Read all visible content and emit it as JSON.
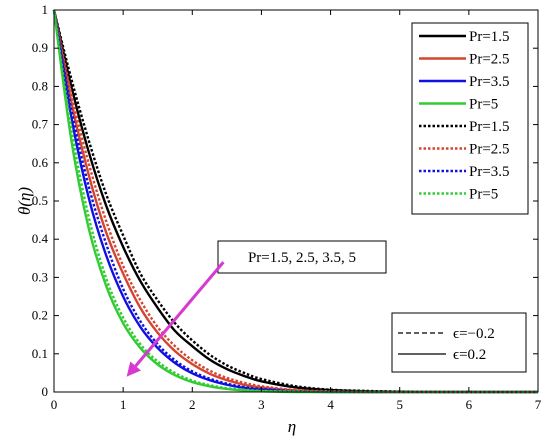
{
  "chart_data": {
    "type": "line",
    "xlabel": "η",
    "ylabel": "θ(η)",
    "xlim": [
      0,
      7
    ],
    "ylim": [
      0,
      1
    ],
    "xticks": [
      "0",
      "1",
      "2",
      "3",
      "4",
      "5",
      "6",
      "7"
    ],
    "yticks": [
      "0",
      "0.1",
      "0.2",
      "0.3",
      "0.4",
      "0.5",
      "0.6",
      "0.7",
      "0.8",
      "0.9",
      "1"
    ],
    "grid": false,
    "legend_position": "top-right",
    "colors": {
      "Pr=1.5": "#000000",
      "Pr=2.5": "#d4452f",
      "Pr=3.5": "#1010e0",
      "Pr=5": "#33cc33"
    },
    "x": [
      0,
      0.25,
      0.5,
      0.75,
      1.0,
      1.25,
      1.5,
      1.75,
      2.0,
      2.25,
      2.5,
      2.75,
      3.0,
      3.5,
      4.0,
      4.5,
      5.0,
      6.0,
      7.0
    ],
    "series": [
      {
        "name": "Pr=1.5",
        "style": "solid",
        "values": [
          1.0,
          0.8,
          0.63,
          0.49,
          0.38,
          0.29,
          0.22,
          0.16,
          0.12,
          0.085,
          0.06,
          0.042,
          0.028,
          0.012,
          0.005,
          0.002,
          0.001,
          0.0,
          0.0
        ]
      },
      {
        "name": "Pr=2.5",
        "style": "solid",
        "values": [
          1.0,
          0.76,
          0.57,
          0.42,
          0.31,
          0.22,
          0.155,
          0.107,
          0.073,
          0.048,
          0.031,
          0.019,
          0.012,
          0.004,
          0.001,
          0.0,
          0.0,
          0.0,
          0.0
        ]
      },
      {
        "name": "Pr=3.5",
        "style": "solid",
        "values": [
          1.0,
          0.72,
          0.51,
          0.36,
          0.25,
          0.17,
          0.115,
          0.076,
          0.049,
          0.031,
          0.019,
          0.011,
          0.006,
          0.002,
          0.0,
          0.0,
          0.0,
          0.0,
          0.0
        ]
      },
      {
        "name": "Pr=5",
        "style": "solid",
        "values": [
          1.0,
          0.66,
          0.43,
          0.28,
          0.18,
          0.115,
          0.072,
          0.044,
          0.026,
          0.015,
          0.008,
          0.004,
          0.002,
          0.0,
          0.0,
          0.0,
          0.0,
          0.0,
          0.0
        ]
      },
      {
        "name": "Pr=1.5",
        "style": "dotted",
        "values": [
          1.0,
          0.82,
          0.66,
          0.52,
          0.41,
          0.31,
          0.24,
          0.18,
          0.135,
          0.098,
          0.07,
          0.05,
          0.034,
          0.015,
          0.006,
          0.003,
          0.001,
          0.0,
          0.0
        ]
      },
      {
        "name": "Pr=2.5",
        "style": "dotted",
        "values": [
          1.0,
          0.78,
          0.6,
          0.45,
          0.33,
          0.24,
          0.17,
          0.12,
          0.083,
          0.056,
          0.037,
          0.024,
          0.015,
          0.005,
          0.002,
          0.0,
          0.0,
          0.0,
          0.0
        ]
      },
      {
        "name": "Pr=3.5",
        "style": "dotted",
        "values": [
          1.0,
          0.74,
          0.54,
          0.39,
          0.27,
          0.185,
          0.125,
          0.083,
          0.054,
          0.035,
          0.022,
          0.013,
          0.008,
          0.002,
          0.001,
          0.0,
          0.0,
          0.0,
          0.0
        ]
      },
      {
        "name": "Pr=5",
        "style": "dotted",
        "values": [
          1.0,
          0.69,
          0.46,
          0.3,
          0.195,
          0.125,
          0.08,
          0.05,
          0.03,
          0.018,
          0.01,
          0.006,
          0.003,
          0.001,
          0.0,
          0.0,
          0.0,
          0.0,
          0.0
        ]
      }
    ],
    "annotation": {
      "text": "Pr=1.5, 2.5, 3.5, 5",
      "arrow_from": [
        2.45,
        0.34
      ],
      "arrow_to": [
        1.05,
        0.04
      ]
    },
    "style_legend": [
      {
        "label": "ϵ=−0.2",
        "style": "dashed"
      },
      {
        "label": "ϵ=0.2",
        "style": "solid"
      }
    ]
  }
}
